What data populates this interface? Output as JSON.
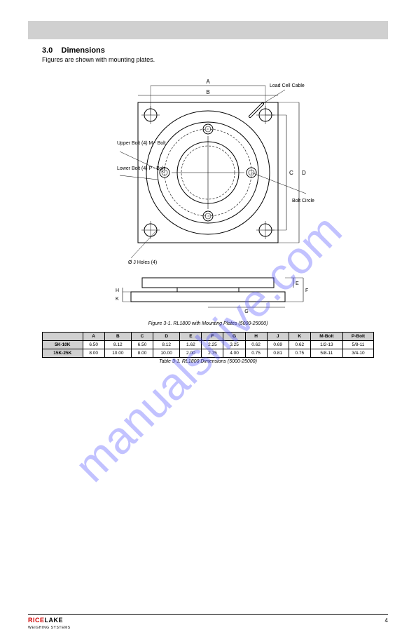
{
  "watermark": "manualshive.com",
  "section": {
    "number": "3.0",
    "title": "Dimensions",
    "sub": "Figures are shown with mounting plates."
  },
  "figure": {
    "caption": "Figure 3-1. RL1800 with Mounting Plates (5000-25000)",
    "callouts": {
      "top_bolt": "Ø J Holes (4)",
      "cable": "Load Cell Cable",
      "upper_bolt": "Upper Bolt (4) M - Bolt",
      "lower_bolt": "Lower Bolt (4) P - Bolt",
      "bolt_circle": "Bolt Circle"
    },
    "dim_labels": {
      "A": "A",
      "B": "B",
      "C": "C",
      "D": "D",
      "E": "E",
      "F": "F",
      "G": "G",
      "H": "H",
      "K": "K"
    }
  },
  "table": {
    "header_row": [
      "",
      "A",
      "B",
      "C",
      "D",
      "E",
      "F",
      "G",
      "H",
      "J",
      "K",
      "M-Bolt",
      "P-Bolt"
    ],
    "rows": [
      {
        "label": "5K-10K",
        "cells": [
          "6.50",
          "8.12",
          "6.50",
          "8.12",
          "1.62",
          "2.25",
          "3.25",
          "0.62",
          "0.69",
          "0.62",
          "1/2-13",
          "5/8-11"
        ]
      },
      {
        "label": "15K-25K",
        "cells": [
          "8.00",
          "10.00",
          "8.00",
          "10.00",
          "2.00",
          "2.75",
          "4.00",
          "0.75",
          "0.81",
          "0.75",
          "5/8-11",
          "3/4-10"
        ]
      }
    ],
    "caption": "Table 3-1. RL1800 Dimensions (5000-25000)"
  },
  "footer": {
    "brand_a": "RICE",
    "brand_b": "LAKE",
    "brand_sub": "WEIGHING SYSTEMS",
    "page": "4"
  },
  "svg": {
    "stroke": "#000000",
    "plate_size": 200,
    "outer_r": 88,
    "inner_r": 44,
    "mid_r": 72,
    "corner_hole_r": 9,
    "bolt_r": 7,
    "bolt_circle_r": 62
  }
}
